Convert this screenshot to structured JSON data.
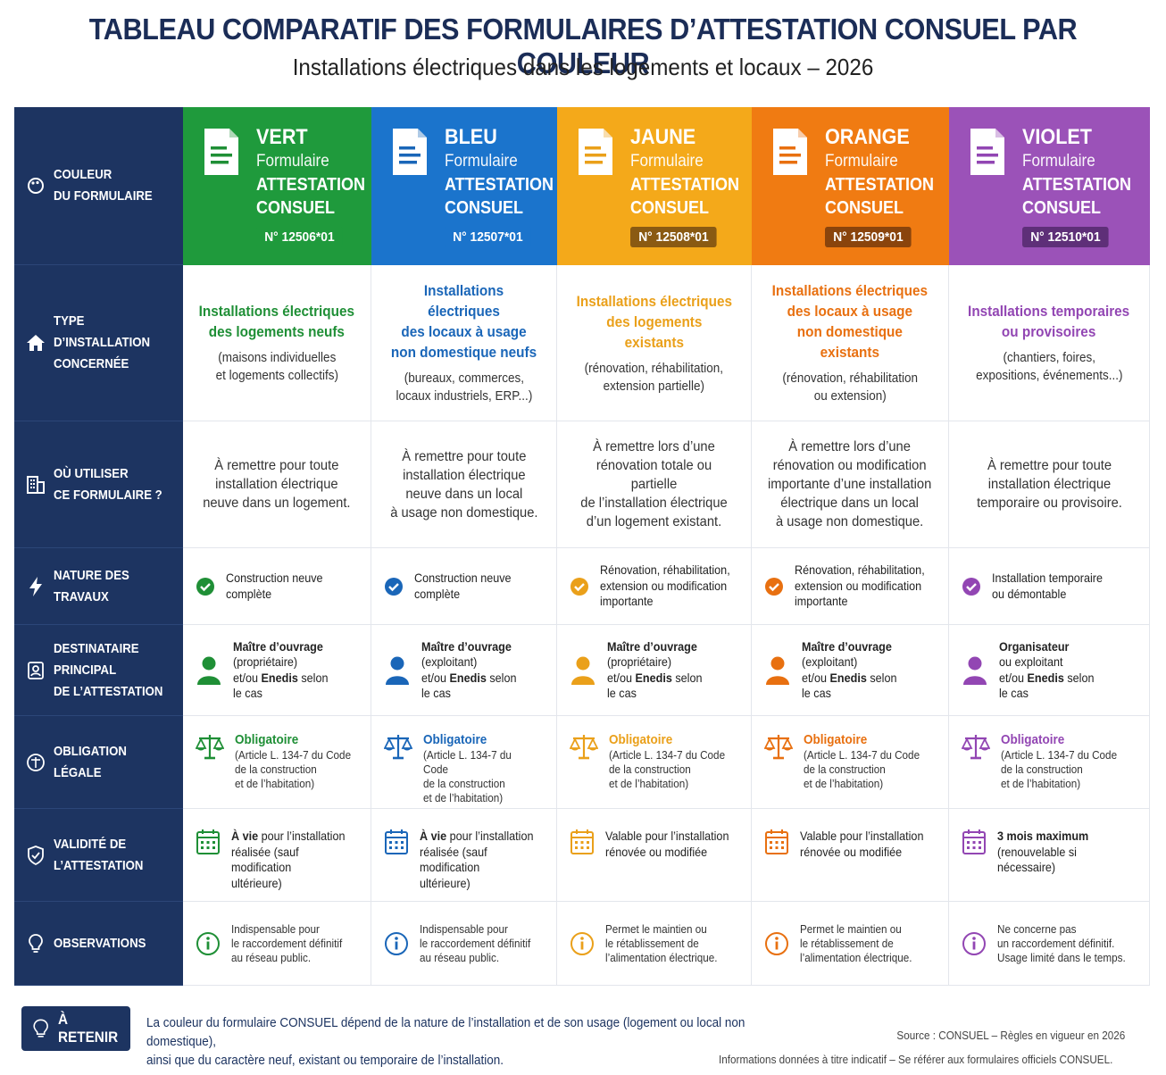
{
  "title": "TABLEAU COMPARATIF DES FORMULAIRES D’ATTESTATION CONSUEL PAR COULEUR",
  "subtitle": "Installations électriques dans les logements et locaux – 2026",
  "labels": [
    {
      "text": "COULEUR\nDU FORMULAIRE",
      "icon": "palette-icon"
    },
    {
      "text": "TYPE D’INSTALLATION\nCONCERNÉE",
      "icon": "house-icon"
    },
    {
      "text": "OÙ UTILISER\nCE FORMULAIRE ?",
      "icon": "building-icon"
    },
    {
      "text": "NATURE DES TRAVAUX",
      "icon": "lightning-icon"
    },
    {
      "text": "DESTINATAIRE PRINCIPAL\nDE L’ATTESTATION",
      "icon": "person-badge-icon"
    },
    {
      "text": "OBLIGATION LÉGALE",
      "icon": "scale-icon"
    },
    {
      "text": "VALIDITÉ DE\nL’ATTESTATION",
      "icon": "shield-icon"
    },
    {
      "text": "OBSERVATIONS",
      "icon": "lightbulb-icon"
    }
  ],
  "columns": [
    {
      "name": "VERT",
      "form": "Formulaire",
      "att1": "ATTESTATION",
      "att2": "CONSUEL",
      "number": "N° 12506*01",
      "color": "#1f9a3c",
      "accent": "#1f8f36",
      "numbg": "#1f9a3c",
      "type_title": "Installations électriques\ndes logements neufs",
      "type_sub": "(maisons individuelles\net logements collectifs)",
      "usage": "À remettre pour toute\ninstallation électrique\nneuve dans un logement.",
      "travaux": "Construction neuve\ncomplète",
      "dest_bold": "Maître d’ouvrage",
      "dest_paren": "(propriétaire)",
      "dest_pre": "et/ou ",
      "dest_enedis": "Enedis",
      "dest_post": " selon\nle cas",
      "obl_title": "Obligatoire",
      "obl_text": "(Article L. 134-7 du Code\nde la construction\net de l’habitation)",
      "val_bold": "À vie",
      "val_text": " pour l’installation\nréalisée (sauf modification\nultérieure)",
      "obs": "Indispensable pour\nle raccordement définitif\nau réseau public."
    },
    {
      "name": "BLEU",
      "form": "Formulaire",
      "att1": "ATTESTATION",
      "att2": "CONSUEL",
      "number": "N° 12507*01",
      "color": "#1b74cc",
      "accent": "#1a66b8",
      "numbg": "#1b74cc",
      "type_title": "Installations électriques\ndes locaux à usage\nnon domestique neufs",
      "type_sub": "(bureaux, commerces,\nlocaux industriels, ERP...)",
      "usage": "À remettre pour toute\ninstallation électrique\nneuve dans un local\nà usage non domestique.",
      "travaux": "Construction neuve\ncomplète",
      "dest_bold": "Maître d’ouvrage",
      "dest_paren": "(exploitant)",
      "dest_pre": "et/ou ",
      "dest_enedis": "Enedis",
      "dest_post": " selon\nle cas",
      "obl_title": "Obligatoire",
      "obl_text": "(Article L. 134-7 du Code\nde la construction\net de l’habitation)",
      "val_bold": "À vie",
      "val_text": " pour l’installation\nréalisée (sauf modification\nultérieure)",
      "obs": "Indispensable pour\nle raccordement définitif\nau réseau public."
    },
    {
      "name": "JAUNE",
      "form": "Formulaire",
      "att1": "ATTESTATION",
      "att2": "CONSUEL",
      "number": "N° 12508*01",
      "color": "#f4a91a",
      "accent": "#eaa01a",
      "numbg": "#8a5a12",
      "type_title": "Installations électriques\ndes logements\nexistants",
      "type_sub": "(rénovation, réhabilitation,\nextension partielle)",
      "usage": "À remettre lors d’une\nrénovation totale ou partielle\nde l’installation électrique\nd’un logement existant.",
      "travaux": "Rénovation, réhabilitation,\nextension ou modification\nimportante",
      "dest_bold": "Maître d’ouvrage",
      "dest_paren": "(propriétaire)",
      "dest_pre": "et/ou ",
      "dest_enedis": "Enedis",
      "dest_post": " selon\nle cas",
      "obl_title": "Obligatoire",
      "obl_text": "(Article L. 134-7 du Code\nde la construction\net de l’habitation)",
      "val_bold": "",
      "val_text": "Valable pour l’installation\nrénovée ou modifiée",
      "obs": "Permet le maintien ou\nle rétablissement de\nl’alimentation électrique."
    },
    {
      "name": "ORANGE",
      "form": "Formulaire",
      "att1": "ATTESTATION",
      "att2": "CONSUEL",
      "number": "N° 12509*01",
      "color": "#f07b12",
      "accent": "#e87010",
      "numbg": "#8a440c",
      "type_title": "Installations électriques\ndes locaux à usage\nnon domestique\nexistants",
      "type_sub": "(rénovation, réhabilitation\nou extension)",
      "usage": "À remettre lors d’une\nrénovation ou modification\nimportante d’une installation\nélectrique dans un local\nà usage non domestique.",
      "travaux": "Rénovation, réhabilitation,\nextension ou modification\nimportante",
      "dest_bold": "Maître d’ouvrage",
      "dest_paren": "(exploitant)",
      "dest_pre": "et/ou ",
      "dest_enedis": "Enedis",
      "dest_post": " selon\nle cas",
      "obl_title": "Obligatoire",
      "obl_text": "(Article L. 134-7 du Code\nde la construction\net de l’habitation)",
      "val_bold": "",
      "val_text": "Valable pour l’installation\nrénovée ou modifiée",
      "obs": "Permet le maintien ou\nle rétablissement de\nl’alimentation électrique."
    },
    {
      "name": "VIOLET",
      "form": "Formulaire",
      "att1": "ATTESTATION",
      "att2": "CONSUEL",
      "number": "N° 12510*01",
      "color": "#9b52b8",
      "accent": "#9246b3",
      "numbg": "#5e2f78",
      "type_title": "Installations temporaires\nou provisoires",
      "type_sub": "(chantiers, foires,\nexpositions, événements...)",
      "usage": "À remettre pour toute\ninstallation électrique\ntemporaire ou provisoire.",
      "travaux": "Installation temporaire\nou démontable",
      "dest_bold": "Organisateur",
      "dest_paren": "ou exploitant",
      "dest_pre": "et/ou ",
      "dest_enedis": "Enedis",
      "dest_post": " selon\nle cas",
      "obl_title": "Obligatoire",
      "obl_text": "(Article L. 134-7 du Code\nde la construction\net de l’habitation)",
      "val_bold": "3 mois maximum",
      "val_text": "\n(renouvelable si nécessaire)",
      "obs": "Ne concerne pas\nun raccordement définitif.\nUsage limité dans le temps."
    }
  ],
  "retenir_label": "À RETENIR",
  "retenir_text": "La couleur du formulaire CONSUEL dépend de la nature de l’installation et de son usage (logement ou local non domestique),\nainsi que du caractère neuf, existant ou temporaire de l’installation.",
  "source": "Source : CONSUEL – Règles en vigueur en 2026",
  "disclaimer": "Informations données à titre indicatif – Se référer aux formulaires officiels CONSUEL."
}
